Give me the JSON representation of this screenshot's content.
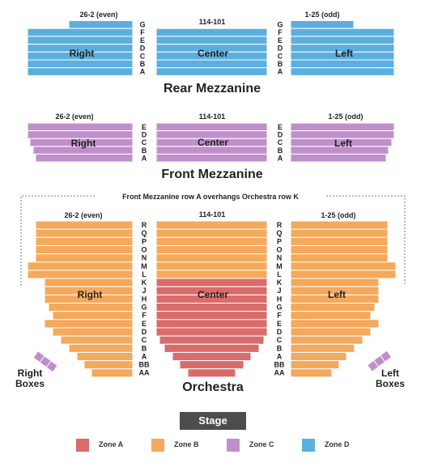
{
  "colors": {
    "zone_a": "#d96b6b",
    "zone_b": "#f5a95b",
    "zone_c": "#c08fcb",
    "zone_d": "#5aafdf"
  },
  "rear_mezzanine": {
    "title": "Rear Mezzanine",
    "rows": [
      "G",
      "F",
      "E",
      "D",
      "C",
      "B",
      "A"
    ],
    "sections": {
      "right": {
        "name": "Right",
        "numbering": "26-2 (even)"
      },
      "center": {
        "name": "Center",
        "numbering": "114-101"
      },
      "left": {
        "name": "Left",
        "numbering": "1-25 (odd)"
      }
    }
  },
  "front_mezzanine": {
    "title": "Front Mezzanine",
    "rows": [
      "E",
      "D",
      "C",
      "B",
      "A"
    ],
    "sections": {
      "right": {
        "name": "Right",
        "numbering": "26-2 (even)"
      },
      "center": {
        "name": "Center",
        "numbering": "114-101"
      },
      "left": {
        "name": "Left",
        "numbering": "1-25 (odd)"
      }
    },
    "overhang_note": "Front Mezzanine row A overhangs Orchestra row K"
  },
  "orchestra": {
    "title": "Orchestra",
    "rows": [
      "R",
      "Q",
      "P",
      "O",
      "N",
      "M",
      "L",
      "K",
      "J",
      "H",
      "G",
      "F",
      "E",
      "D",
      "C",
      "B",
      "A",
      "BB",
      "AA"
    ],
    "sections": {
      "right": {
        "name": "Right",
        "numbering": "26-2 (even)"
      },
      "center": {
        "name": "Center",
        "numbering": "114-101"
      },
      "left": {
        "name": "Left",
        "numbering": "1-25 (odd)"
      }
    }
  },
  "boxes": {
    "right": {
      "line1": "Right",
      "line2": "Boxes"
    },
    "left": {
      "line1": "Left",
      "line2": "Boxes"
    }
  },
  "stage_label": "Stage",
  "legend": [
    {
      "label": "Zone A",
      "color": "#d96b6b"
    },
    {
      "label": "Zone B",
      "color": "#f5a95b"
    },
    {
      "label": "Zone C",
      "color": "#c08fcb"
    },
    {
      "label": "Zone D",
      "color": "#5aafdf"
    }
  ]
}
